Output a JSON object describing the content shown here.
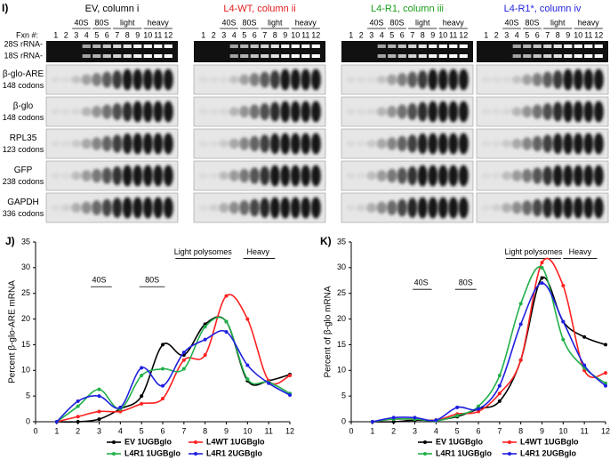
{
  "blots": {
    "panel_label": "I)",
    "fxn_label": "Fxn #:",
    "columns": [
      {
        "title": "EV, column i",
        "color": "#000000"
      },
      {
        "title": "L4-WT, column ii",
        "color": "#e41a1c"
      },
      {
        "title": "L4-R1, column iii",
        "color": "#1a9e1a"
      },
      {
        "title": "L4-R1*, column iv",
        "color": "#1f1fe0"
      }
    ],
    "fractions": [
      1,
      2,
      3,
      4,
      5,
      6,
      7,
      8,
      9,
      10,
      11,
      12
    ],
    "regions": [
      "40S",
      "80S",
      "light",
      "heavy"
    ],
    "rrna_labels": [
      "28S rRNA-",
      "18S rRNA-"
    ],
    "rows": [
      {
        "name": "β-glo-ARE",
        "codons": "148 codons"
      },
      {
        "name": "β-glo",
        "codons": "148 codons"
      },
      {
        "name": "RPL35",
        "codons": "123 codons"
      },
      {
        "name": "GFP",
        "codons": "238 codons"
      },
      {
        "name": "GAPDH",
        "codons": "336 codons"
      }
    ]
  },
  "chart_data": [
    {
      "type": "line",
      "panel_label": "J)",
      "y_label": "Percent β-glo-ARE mRNA",
      "x": [
        1,
        2,
        3,
        4,
        5,
        6,
        7,
        8,
        9,
        10,
        11,
        12
      ],
      "xlim": [
        0,
        12
      ],
      "xticks": [
        0,
        1,
        2,
        3,
        4,
        5,
        6,
        7,
        8,
        9,
        10,
        11,
        12
      ],
      "ylim": [
        0,
        35
      ],
      "yticks": [
        0,
        5,
        10,
        15,
        20,
        25,
        30,
        35
      ],
      "annotations": [
        "40S",
        "80S",
        "Light polysomes",
        "Heavy"
      ],
      "series": [
        {
          "name": "EV 1UGBglo",
          "color": "#000000",
          "values": [
            0,
            0,
            0.5,
            2.5,
            5,
            15,
            13,
            19,
            19.5,
            8,
            8,
            9.2
          ]
        },
        {
          "name": "L4WT 1UGBglo",
          "color": "#ff2020",
          "values": [
            0,
            1,
            2,
            2,
            3.5,
            4.5,
            12,
            13,
            24.5,
            20,
            8,
            9
          ]
        },
        {
          "name": "L4R1 1UGBglo",
          "color": "#22b04a",
          "values": [
            0,
            3,
            6.3,
            2.5,
            9,
            10.3,
            10.3,
            18.5,
            19.5,
            8.3,
            7.7,
            5.5
          ]
        },
        {
          "name": "L4R1 2UGBglo",
          "color": "#1f1fe0",
          "values": [
            0,
            4,
            5,
            2.8,
            10.5,
            7,
            13.5,
            16,
            17.5,
            11,
            7.5,
            5.2
          ]
        }
      ]
    },
    {
      "type": "line",
      "panel_label": "K)",
      "y_label": "Percent of  β-glo mRNA",
      "x": [
        1,
        2,
        3,
        4,
        5,
        6,
        7,
        8,
        9,
        10,
        11,
        12
      ],
      "xlim": [
        0,
        12
      ],
      "xticks": [
        0,
        1,
        2,
        3,
        4,
        5,
        6,
        7,
        8,
        9,
        10,
        11,
        12
      ],
      "ylim": [
        0,
        35
      ],
      "yticks": [
        0,
        5,
        10,
        15,
        20,
        25,
        30,
        35
      ],
      "annotations": [
        "40S",
        "80S",
        "Light polysomes",
        "Heavy"
      ],
      "series": [
        {
          "name": "EV 1UGBglo",
          "color": "#000000",
          "values": [
            0,
            0,
            0.3,
            0.3,
            1,
            2.5,
            4,
            12,
            28,
            19.5,
            16.5,
            15
          ]
        },
        {
          "name": "L4WT 1UGBglo",
          "color": "#ff2020",
          "values": [
            0,
            0.5,
            0.5,
            0.3,
            1.5,
            2,
            5.5,
            12,
            31,
            26.5,
            10,
            9.5
          ]
        },
        {
          "name": "L4R1 1UGBglo",
          "color": "#22b04a",
          "values": [
            0,
            0.5,
            0.5,
            0.2,
            1.2,
            3,
            9,
            23,
            30,
            16,
            10.5,
            7.5
          ]
        },
        {
          "name": "L4R1 2UGBglo",
          "color": "#1f1fe0",
          "values": [
            0,
            0.8,
            0.8,
            0.3,
            2.8,
            2.5,
            7,
            19,
            27,
            19.5,
            11,
            7
          ]
        }
      ]
    }
  ]
}
